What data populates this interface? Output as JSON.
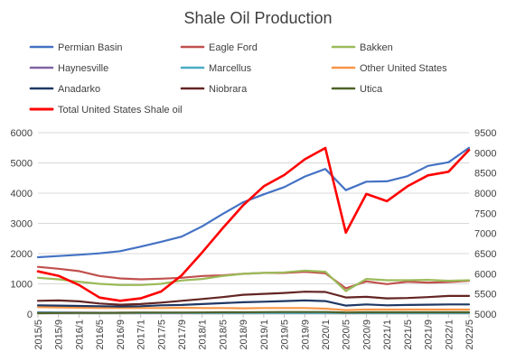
{
  "chart_data": {
    "type": "line",
    "title": "Shale Oil Production",
    "x": [
      "2015/5",
      "2015/9",
      "2016/1",
      "2016/5",
      "2016/9",
      "2017/1",
      "2017/5",
      "2017/9",
      "2018/1",
      "2018/5",
      "2018/9",
      "2019/1",
      "2019/5",
      "2019/9",
      "2020/1",
      "2020/5",
      "2020/9",
      "2021/1",
      "2021/5",
      "2021/9",
      "2022/1",
      "2022/5"
    ],
    "y_left": {
      "min": 0,
      "max": 6000,
      "ticks": [
        0,
        1000,
        2000,
        3000,
        4000,
        5000,
        6000
      ]
    },
    "y_right": {
      "min": 5000,
      "max": 9500,
      "ticks": [
        5000,
        5500,
        6000,
        6500,
        7000,
        7500,
        8000,
        8500,
        9000,
        9500
      ]
    },
    "grid": true,
    "legend_position": "top",
    "series": [
      {
        "name": "Permian Basin",
        "color": "#4472C4",
        "axis": "left",
        "values": [
          1880,
          1920,
          1960,
          2010,
          2080,
          2230,
          2390,
          2560,
          2900,
          3310,
          3700,
          3960,
          4200,
          4550,
          4800,
          4100,
          4380,
          4390,
          4560,
          4900,
          5020,
          5500
        ]
      },
      {
        "name": "Eagle Ford",
        "color": "#C0504D",
        "axis": "left",
        "values": [
          1560,
          1500,
          1420,
          1260,
          1180,
          1150,
          1170,
          1200,
          1260,
          1280,
          1330,
          1360,
          1360,
          1400,
          1350,
          850,
          1080,
          990,
          1070,
          1040,
          1060,
          1100
        ]
      },
      {
        "name": "Bakken",
        "color": "#9BBB59",
        "axis": "left",
        "values": [
          1200,
          1150,
          1070,
          1000,
          960,
          960,
          1000,
          1110,
          1160,
          1260,
          1330,
          1360,
          1380,
          1440,
          1400,
          760,
          1160,
          1120,
          1120,
          1130,
          1100,
          1120
        ]
      },
      {
        "name": "Haynesville",
        "color": "#8064A2",
        "axis": "left",
        "values": [
          60,
          55,
          50,
          45,
          45,
          45,
          45,
          45,
          45,
          45,
          45,
          45,
          45,
          45,
          45,
          40,
          40,
          40,
          40,
          40,
          40,
          40
        ]
      },
      {
        "name": "Marcellus",
        "color": "#4BACC6",
        "axis": "left",
        "values": [
          45,
          45,
          40,
          40,
          40,
          40,
          40,
          40,
          40,
          40,
          40,
          40,
          40,
          40,
          40,
          35,
          35,
          35,
          35,
          35,
          35,
          35
        ]
      },
      {
        "name": "Other United States",
        "color": "#F79646",
        "axis": "left",
        "values": [
          230,
          220,
          210,
          200,
          200,
          200,
          200,
          210,
          200,
          200,
          190,
          200,
          200,
          200,
          180,
          130,
          150,
          150,
          150,
          150,
          150,
          150
        ]
      },
      {
        "name": "Anadarko",
        "color": "#1F3864",
        "axis": "left",
        "values": [
          290,
          280,
          270,
          260,
          250,
          260,
          290,
          300,
          330,
          360,
          390,
          410,
          430,
          450,
          430,
          280,
          320,
          290,
          300,
          310,
          320,
          320
        ]
      },
      {
        "name": "Niobrara",
        "color": "#632523",
        "axis": "left",
        "values": [
          440,
          450,
          420,
          350,
          310,
          330,
          380,
          440,
          500,
          560,
          640,
          670,
          700,
          740,
          730,
          550,
          570,
          520,
          530,
          560,
          600,
          600
        ]
      },
      {
        "name": "Utica",
        "color": "#4F6228",
        "axis": "left",
        "values": [
          30,
          35,
          40,
          40,
          45,
          50,
          50,
          50,
          55,
          60,
          60,
          65,
          70,
          70,
          70,
          50,
          60,
          60,
          60,
          60,
          60,
          60
        ]
      },
      {
        "name": "Total United States Shale oil",
        "color": "#FF0000",
        "axis": "right",
        "values": [
          6060,
          5950,
          5720,
          5410,
          5330,
          5390,
          5560,
          5960,
          6530,
          7130,
          7700,
          8170,
          8450,
          8840,
          9120,
          7020,
          7980,
          7800,
          8170,
          8440,
          8530,
          9070
        ]
      }
    ]
  }
}
